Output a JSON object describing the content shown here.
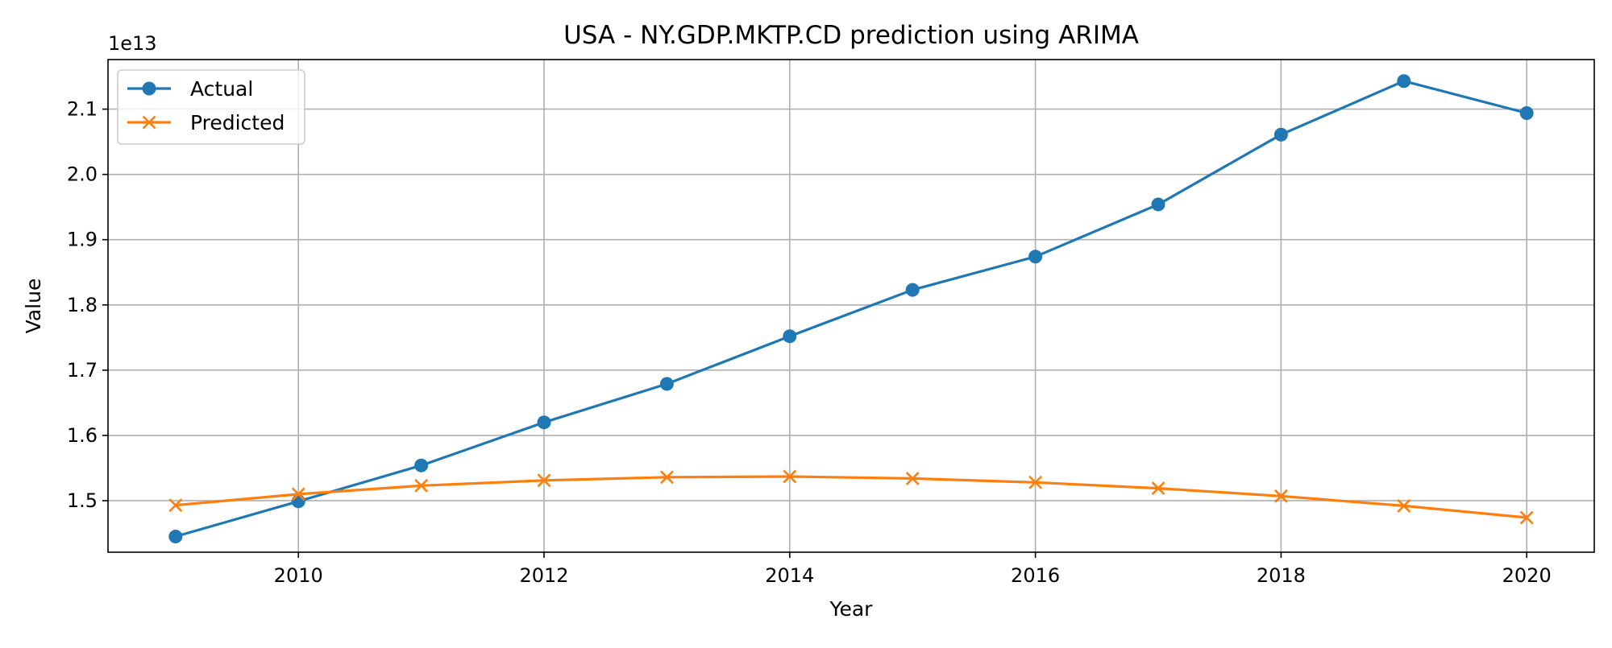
{
  "chart_data": {
    "type": "line",
    "title": "USA - NY.GDP.MKTP.CD prediction using ARIMA",
    "xlabel": "Year",
    "ylabel": "Value",
    "y_offset_label": "1e13",
    "x": [
      2009,
      2010,
      2011,
      2012,
      2013,
      2014,
      2015,
      2016,
      2017,
      2018,
      2019,
      2020
    ],
    "xlim": [
      2008.45,
      2020.55
    ],
    "ylim": [
      1.421,
      2.176
    ],
    "x_ticks": [
      2010,
      2012,
      2014,
      2016,
      2018,
      2020
    ],
    "y_ticks": [
      1.5,
      1.6,
      1.7,
      1.8,
      1.9,
      2.0,
      2.1
    ],
    "y_tick_labels": [
      "1.5",
      "1.6",
      "1.7",
      "1.8",
      "1.9",
      "2.0",
      "2.1"
    ],
    "grid": true,
    "legend_position": "top-left",
    "series": [
      {
        "name": "Actual",
        "color": "#1f77b4",
        "marker": "circle",
        "values": [
          1.445,
          1.499,
          1.554,
          1.62,
          1.679,
          1.752,
          1.823,
          1.874,
          1.954,
          2.061,
          2.143,
          2.094
        ]
      },
      {
        "name": "Predicted",
        "color": "#ff7f0e",
        "marker": "x",
        "values": [
          1.493,
          1.51,
          1.523,
          1.531,
          1.536,
          1.537,
          1.534,
          1.528,
          1.519,
          1.507,
          1.492,
          1.474
        ]
      }
    ]
  }
}
